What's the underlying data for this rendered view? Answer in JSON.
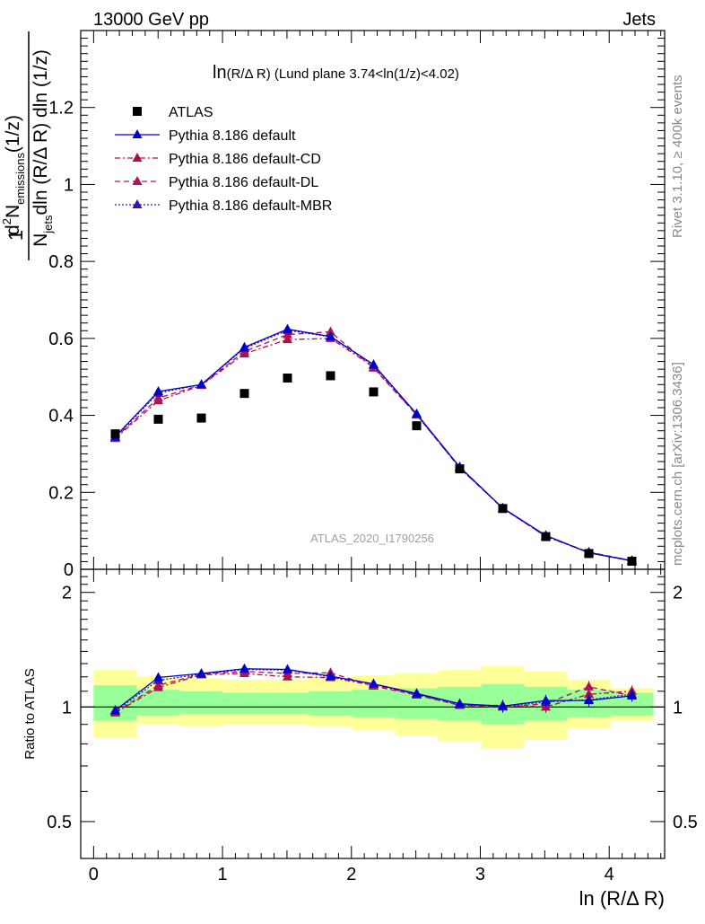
{
  "header": {
    "left": "13000 GeV pp",
    "right": "Jets",
    "title_main": "ln",
    "title_rest": "(R/Δ R) (Lund plane 3.74<ln(1/z)<4.02)",
    "watermark": "ATLAS_2020_I1790256",
    "side_rivet": "Rivet 3.1.10, ≥ 400k events",
    "side_mcplots": "mcplots.cern.ch [arXiv:1306.3436]"
  },
  "axes": {
    "ylabel_top": {
      "num_d": "d",
      "num_exp": "2",
      "num_N": "N",
      "num_sub": "emissions",
      "num_unit": "(1/z)",
      "den_N": "N",
      "den_sub": "jets",
      "den_rest": "dln (R/Δ R) dln (1/z)",
      "one": "1"
    },
    "ylabel_bottom": "Ratio to ATLAS",
    "xlabel": "ln (R/Δ R)"
  },
  "colors": {
    "data": "#000000",
    "default": "#0000cc",
    "cd": "#b0103a",
    "dl": "#b01060",
    "mbr": "#3a10b0",
    "band_inner": "#99ff99",
    "band_outer": "#ffff99"
  },
  "chart_data": {
    "type": "scatter",
    "x": [
      0.168,
      0.502,
      0.836,
      1.17,
      1.504,
      1.838,
      2.172,
      2.506,
      2.84,
      3.174,
      3.508,
      3.842,
      4.176
    ],
    "x_edges": [
      0.0,
      0.335,
      0.669,
      1.003,
      1.337,
      1.671,
      2.005,
      2.339,
      2.673,
      3.007,
      3.341,
      3.675,
      4.009,
      4.343
    ],
    "xlim": [
      -0.1,
      4.43
    ],
    "ylim_top": [
      0,
      1.4
    ],
    "ylim_ratio": [
      0.4,
      2.3
    ],
    "xticks": [
      0,
      1,
      2,
      3,
      4
    ],
    "xtick_labels": [
      "0",
      "1",
      "2",
      "3",
      "4"
    ],
    "yticks_top": [
      0,
      0.2,
      0.4,
      0.6,
      0.8,
      1,
      1.2
    ],
    "ytick_labels_top": [
      "0",
      "0.2",
      "0.4",
      "0.6",
      "0.8",
      "1",
      "1.2"
    ],
    "yticks_ratio": [
      0.5,
      1,
      2
    ],
    "ytick_labels_ratio": [
      "0.5",
      "1",
      "2"
    ],
    "series": [
      {
        "name": "ATLAS",
        "key": "data",
        "style": "square",
        "values": [
          0.352,
          0.39,
          0.393,
          0.457,
          0.497,
          0.503,
          0.461,
          0.373,
          0.261,
          0.158,
          0.085,
          0.041,
          0.021
        ]
      },
      {
        "name": "Pythia 8.186 default",
        "key": "default",
        "style": "solid",
        "values": [
          0.345,
          0.462,
          0.48,
          0.577,
          0.624,
          0.605,
          0.532,
          0.404,
          0.266,
          0.159,
          0.088,
          0.043,
          0.022
        ]
      },
      {
        "name": "Pythia 8.186 default-CD",
        "key": "cd",
        "style": "dashdot",
        "values": [
          0.34,
          0.438,
          0.478,
          0.56,
          0.597,
          0.6,
          0.526,
          0.402,
          0.263,
          0.159,
          0.085,
          0.044,
          0.023
        ]
      },
      {
        "name": "Pythia 8.186 default-DL",
        "key": "dl",
        "style": "dashed",
        "values": [
          0.342,
          0.445,
          0.479,
          0.566,
          0.61,
          0.617,
          0.523,
          0.401,
          0.264,
          0.158,
          0.086,
          0.045,
          0.022
        ]
      },
      {
        "name": "Pythia 8.186 default-MBR",
        "key": "mbr",
        "style": "dotted",
        "values": [
          0.343,
          0.458,
          0.48,
          0.574,
          0.621,
          0.604,
          0.53,
          0.403,
          0.265,
          0.159,
          0.087,
          0.043,
          0.022
        ]
      }
    ],
    "ratios": [
      {
        "key": "default",
        "values": [
          0.98,
          1.195,
          1.225,
          1.26,
          1.255,
          1.205,
          1.15,
          1.085,
          1.02,
          1.005,
          1.04,
          1.04,
          1.07
        ]
      },
      {
        "key": "cd",
        "values": [
          0.965,
          1.125,
          1.215,
          1.225,
          1.2,
          1.195,
          1.14,
          1.08,
          1.01,
          1.01,
          1.0,
          1.08,
          1.1
        ]
      },
      {
        "key": "dl",
        "values": [
          0.97,
          1.14,
          1.22,
          1.24,
          1.225,
          1.23,
          1.135,
          1.075,
          1.01,
          1.0,
          1.02,
          1.13,
          1.07
        ]
      },
      {
        "key": "mbr",
        "values": [
          0.975,
          1.175,
          1.22,
          1.255,
          1.25,
          1.2,
          1.15,
          1.08,
          1.015,
          1.005,
          1.03,
          1.045,
          1.08
        ]
      }
    ],
    "band_inner": [
      [
        0.92,
        1.14
      ],
      [
        0.95,
        1.11
      ],
      [
        0.96,
        1.1
      ],
      [
        0.96,
        1.09
      ],
      [
        0.96,
        1.09
      ],
      [
        0.95,
        1.1
      ],
      [
        0.94,
        1.11
      ],
      [
        0.93,
        1.12
      ],
      [
        0.92,
        1.13
      ],
      [
        0.9,
        1.15
      ],
      [
        0.92,
        1.13
      ],
      [
        0.94,
        1.11
      ],
      [
        0.95,
        1.09
      ]
    ],
    "band_outer": [
      [
        0.83,
        1.25
      ],
      [
        0.9,
        1.2
      ],
      [
        0.89,
        1.19
      ],
      [
        0.9,
        1.18
      ],
      [
        0.9,
        1.18
      ],
      [
        0.89,
        1.19
      ],
      [
        0.87,
        1.21
      ],
      [
        0.84,
        1.23
      ],
      [
        0.81,
        1.25
      ],
      [
        0.78,
        1.28
      ],
      [
        0.82,
        1.24
      ],
      [
        0.88,
        1.18
      ],
      [
        0.92,
        1.12
      ]
    ]
  }
}
